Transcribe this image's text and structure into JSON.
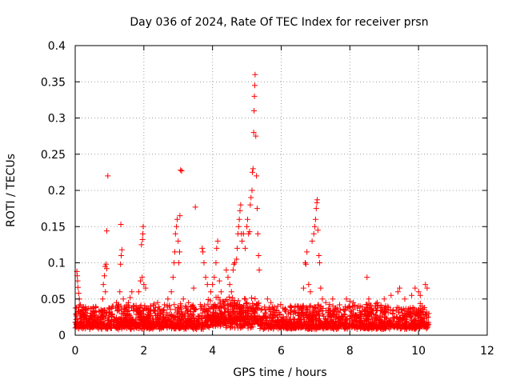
{
  "chart_data": {
    "type": "scatter",
    "title": "Day 036 of 2024, Rate Of TEC Index for receiver prsn",
    "xlabel": "GPS time / hours",
    "ylabel": "ROTI / TECUs",
    "xlim": [
      0,
      12
    ],
    "ylim": [
      0,
      0.4
    ],
    "x_ticks": [
      0,
      2,
      4,
      6,
      8,
      10,
      12
    ],
    "y_ticks": [
      0,
      0.05,
      0.1,
      0.15,
      0.2,
      0.25,
      0.3,
      0.35,
      0.4
    ],
    "x_tick_labels": [
      "0",
      "2",
      "4",
      "6",
      "8",
      "10",
      "12"
    ],
    "y_tick_labels": [
      "0",
      "0.05",
      "0.1",
      "0.15",
      "0.2",
      "0.25",
      "0.3",
      "0.35",
      "0.4"
    ],
    "grid": true,
    "marker": "+",
    "marker_color": "#ff0000",
    "series": [
      {
        "name": "ROTI",
        "points": [
          [
            0.05,
            0.088
          ],
          [
            0.06,
            0.082
          ],
          [
            0.07,
            0.075
          ],
          [
            0.08,
            0.066
          ],
          [
            0.1,
            0.058
          ],
          [
            0.12,
            0.05
          ],
          [
            0.15,
            0.042
          ],
          [
            0.3,
            0.035
          ],
          [
            0.5,
            0.03
          ],
          [
            0.6,
            0.038
          ],
          [
            0.7,
            0.032
          ],
          [
            0.8,
            0.05
          ],
          [
            0.82,
            0.07
          ],
          [
            0.85,
            0.082
          ],
          [
            0.87,
            0.095
          ],
          [
            0.9,
            0.098
          ],
          [
            0.92,
            0.092
          ],
          [
            0.88,
            0.06
          ],
          [
            0.92,
            0.144
          ],
          [
            0.95,
            0.22
          ],
          [
            1.1,
            0.04
          ],
          [
            1.2,
            0.045
          ],
          [
            1.3,
            0.06
          ],
          [
            1.32,
            0.098
          ],
          [
            1.34,
            0.11
          ],
          [
            1.36,
            0.118
          ],
          [
            1.33,
            0.153
          ],
          [
            1.4,
            0.05
          ],
          [
            1.5,
            0.038
          ],
          [
            1.55,
            0.045
          ],
          [
            1.6,
            0.052
          ],
          [
            1.65,
            0.06
          ],
          [
            1.7,
            0.035
          ],
          [
            1.85,
            0.06
          ],
          [
            1.9,
            0.075
          ],
          [
            1.95,
            0.08
          ],
          [
            1.93,
            0.125
          ],
          [
            1.96,
            0.132
          ],
          [
            1.97,
            0.14
          ],
          [
            1.98,
            0.15
          ],
          [
            2.0,
            0.07
          ],
          [
            2.05,
            0.065
          ],
          [
            2.2,
            0.04
          ],
          [
            2.4,
            0.045
          ],
          [
            2.6,
            0.042
          ],
          [
            2.7,
            0.05
          ],
          [
            2.8,
            0.06
          ],
          [
            2.85,
            0.08
          ],
          [
            2.88,
            0.1
          ],
          [
            2.9,
            0.115
          ],
          [
            2.92,
            0.14
          ],
          [
            2.95,
            0.15
          ],
          [
            2.97,
            0.16
          ],
          [
            3.0,
            0.13
          ],
          [
            3.02,
            0.1
          ],
          [
            3.04,
            0.115
          ],
          [
            3.05,
            0.165
          ],
          [
            3.07,
            0.228
          ],
          [
            3.1,
            0.227
          ],
          [
            3.15,
            0.05
          ],
          [
            3.3,
            0.045
          ],
          [
            3.4,
            0.04
          ],
          [
            3.45,
            0.065
          ],
          [
            3.5,
            0.177
          ],
          [
            3.7,
            0.12
          ],
          [
            3.72,
            0.115
          ],
          [
            3.75,
            0.1
          ],
          [
            3.8,
            0.08
          ],
          [
            3.85,
            0.07
          ],
          [
            3.95,
            0.06
          ],
          [
            4.0,
            0.07
          ],
          [
            4.05,
            0.08
          ],
          [
            4.1,
            0.1
          ],
          [
            4.12,
            0.12
          ],
          [
            4.15,
            0.13
          ],
          [
            4.2,
            0.075
          ],
          [
            4.25,
            0.06
          ],
          [
            4.4,
            0.09
          ],
          [
            4.45,
            0.08
          ],
          [
            4.5,
            0.07
          ],
          [
            4.55,
            0.06
          ],
          [
            4.6,
            0.09
          ],
          [
            4.62,
            0.098
          ],
          [
            4.65,
            0.1
          ],
          [
            4.7,
            0.105
          ],
          [
            4.72,
            0.12
          ],
          [
            4.74,
            0.14
          ],
          [
            4.76,
            0.15
          ],
          [
            4.78,
            0.16
          ],
          [
            4.8,
            0.172
          ],
          [
            4.82,
            0.18
          ],
          [
            4.84,
            0.14
          ],
          [
            4.86,
            0.13
          ],
          [
            4.9,
            0.14
          ],
          [
            4.95,
            0.12
          ],
          [
            5.0,
            0.15
          ],
          [
            5.02,
            0.16
          ],
          [
            5.05,
            0.14
          ],
          [
            5.08,
            0.143
          ],
          [
            5.1,
            0.18
          ],
          [
            5.12,
            0.19
          ],
          [
            5.15,
            0.2
          ],
          [
            5.16,
            0.225
          ],
          [
            5.18,
            0.23
          ],
          [
            5.2,
            0.28
          ],
          [
            5.21,
            0.31
          ],
          [
            5.22,
            0.33
          ],
          [
            5.23,
            0.345
          ],
          [
            5.24,
            0.36
          ],
          [
            5.26,
            0.275
          ],
          [
            5.28,
            0.22
          ],
          [
            5.3,
            0.175
          ],
          [
            5.32,
            0.14
          ],
          [
            5.34,
            0.11
          ],
          [
            5.36,
            0.09
          ],
          [
            5.6,
            0.05
          ],
          [
            5.7,
            0.045
          ],
          [
            5.9,
            0.04
          ],
          [
            6.1,
            0.035
          ],
          [
            6.3,
            0.038
          ],
          [
            6.5,
            0.04
          ],
          [
            6.65,
            0.065
          ],
          [
            6.7,
            0.1
          ],
          [
            6.72,
            0.098
          ],
          [
            6.75,
            0.115
          ],
          [
            6.8,
            0.07
          ],
          [
            6.85,
            0.06
          ],
          [
            6.9,
            0.13
          ],
          [
            6.95,
            0.14
          ],
          [
            6.98,
            0.15
          ],
          [
            7.0,
            0.16
          ],
          [
            7.02,
            0.175
          ],
          [
            7.04,
            0.183
          ],
          [
            7.05,
            0.187
          ],
          [
            7.07,
            0.145
          ],
          [
            7.1,
            0.11
          ],
          [
            7.12,
            0.1
          ],
          [
            7.15,
            0.065
          ],
          [
            7.2,
            0.05
          ],
          [
            7.3,
            0.045
          ],
          [
            7.5,
            0.05
          ],
          [
            7.7,
            0.042
          ],
          [
            7.9,
            0.05
          ],
          [
            8.0,
            0.047
          ],
          [
            8.1,
            0.045
          ],
          [
            8.3,
            0.04
          ],
          [
            8.5,
            0.08
          ],
          [
            8.55,
            0.05
          ],
          [
            8.8,
            0.045
          ],
          [
            9.0,
            0.05
          ],
          [
            9.2,
            0.055
          ],
          [
            9.4,
            0.06
          ],
          [
            9.45,
            0.065
          ],
          [
            9.6,
            0.05
          ],
          [
            9.8,
            0.055
          ],
          [
            9.9,
            0.065
          ],
          [
            10.0,
            0.06
          ],
          [
            10.05,
            0.055
          ],
          [
            10.2,
            0.07
          ],
          [
            10.25,
            0.065
          ],
          [
            10.3,
            0.03
          ]
        ]
      }
    ]
  }
}
